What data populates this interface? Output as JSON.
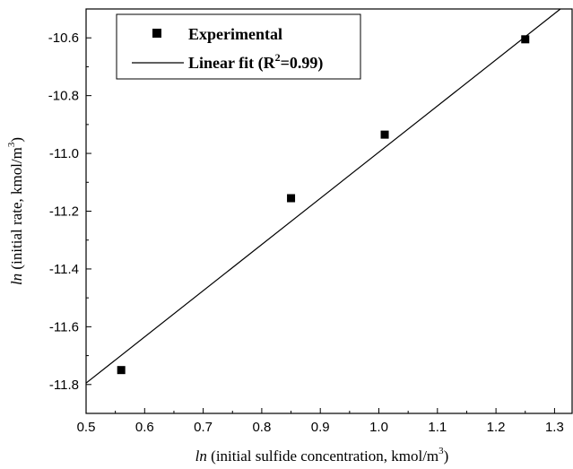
{
  "chart_data": {
    "type": "scatter",
    "title": "",
    "xlabel": {
      "italic": "ln",
      "text": " (initial sulfide concentration, kmol/m",
      "sup": "3",
      "end": ")"
    },
    "ylabel": {
      "italic": "ln",
      "text": " (initial rate, kmol/m",
      "sup": "3",
      "end": ")"
    },
    "xlim": [
      0.5,
      1.33
    ],
    "ylim": [
      -11.9,
      -10.5
    ],
    "xticks": [
      "0.5",
      "0.6",
      "0.7",
      "0.8",
      "0.9",
      "1.0",
      "1.1",
      "1.2",
      "1.3"
    ],
    "yticks": [
      "-10.6",
      "-10.8",
      "-11.0",
      "-11.2",
      "-11.4",
      "-11.6",
      "-11.8"
    ],
    "series": [
      {
        "name": "Experimental",
        "type": "scatter",
        "marker": "square",
        "color": "#000000",
        "x": [
          0.56,
          0.85,
          1.01,
          1.25
        ],
        "y": [
          -11.75,
          -11.155,
          -10.935,
          -10.605
        ]
      },
      {
        "name": "Linear fit (R2=0.99)",
        "type": "line",
        "color": "#000000",
        "x": [
          0.5,
          1.31
        ],
        "y": [
          -11.795,
          -10.5
        ]
      }
    ],
    "legend": {
      "position": "top-left",
      "items": [
        {
          "label": "Experimental",
          "marker": "square"
        },
        {
          "label_prefix": "Linear fit (R",
          "label_sup": "2",
          "label_suffix": "=0.99)",
          "marker": "line"
        }
      ]
    }
  }
}
